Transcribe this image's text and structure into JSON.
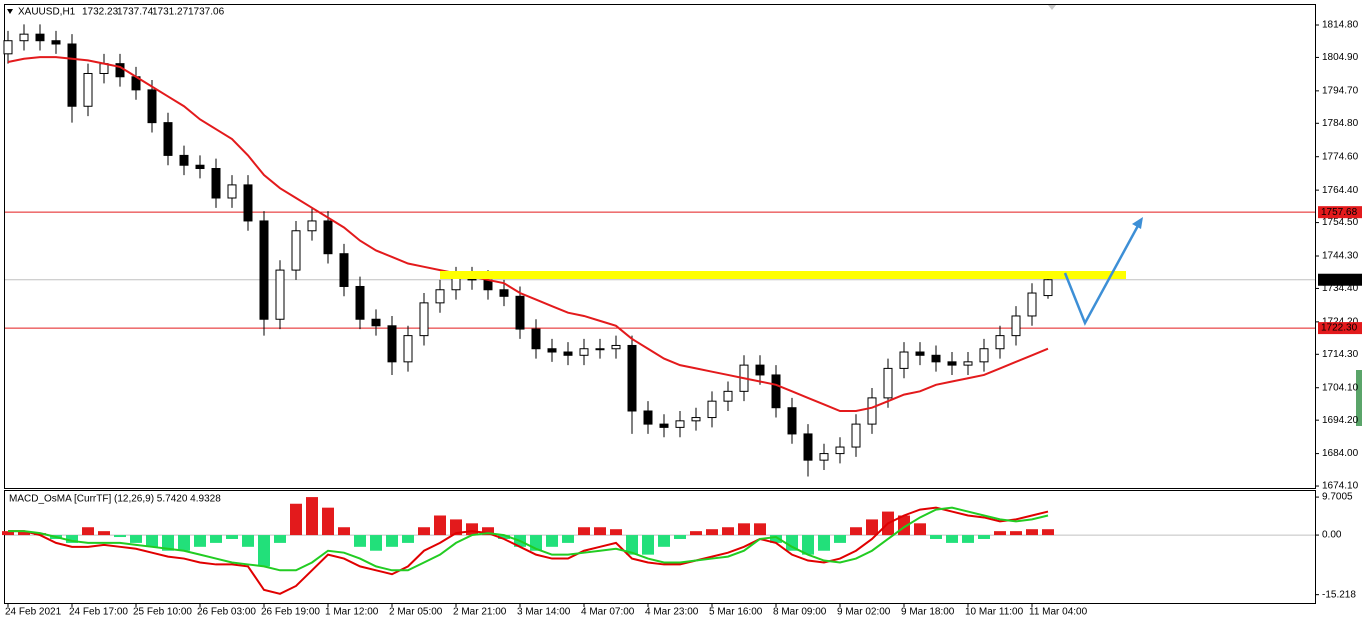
{
  "chart_data": {
    "type": "candlestick",
    "title": "XAUUSD,H1",
    "categories": [
      "24 Feb 2021",
      null,
      null,
      null,
      "24 Feb 17:00",
      null,
      null,
      null,
      "25 Feb 10:00",
      null,
      null,
      null,
      "26 Feb 03:00",
      null,
      null,
      null,
      "26 Feb 19:00",
      null,
      null,
      null,
      "1 Mar 12:00",
      null,
      null,
      null,
      "2 Mar 05:00",
      null,
      null,
      null,
      "2 Mar 21:00",
      null,
      null,
      null,
      "3 Mar 14:00",
      null,
      null,
      null,
      "4 Mar 07:00",
      null,
      null,
      null,
      "4 Mar 23:00",
      null,
      null,
      null,
      "5 Mar 16:00",
      null,
      null,
      null,
      "8 Mar 09:00",
      null,
      null,
      null,
      "9 Mar 02:00",
      null,
      null,
      null,
      "9 Mar 18:00",
      null,
      null,
      null,
      "10 Mar 11:00",
      null,
      null,
      null,
      "11 Mar 04:00",
      null
    ],
    "open": [
      1806,
      1810,
      1812,
      1810,
      1809,
      1790,
      1800,
      1803,
      1799,
      1795,
      1785,
      1775,
      1772,
      1771,
      1762,
      1766,
      1755,
      1725,
      1740,
      1752,
      1755,
      1745,
      1735,
      1725,
      1723,
      1712,
      1720,
      1730,
      1734,
      1738,
      1737,
      1734,
      1732,
      1722,
      1716,
      1715,
      1714,
      1716,
      1716,
      1717,
      1697,
      1693,
      1692,
      1694,
      1695,
      1700,
      1703,
      1711,
      1708,
      1698,
      1690,
      1682,
      1684,
      1686,
      1693,
      1701,
      1710,
      1715,
      1714,
      1712,
      1711,
      1712,
      1716,
      1720,
      1726,
      1732.23
    ],
    "high": [
      1813,
      1815,
      1815,
      1813,
      1812,
      1803,
      1806,
      1806,
      1802,
      1798,
      1788,
      1778,
      1775,
      1774,
      1769,
      1769,
      1758,
      1743,
      1755,
      1759,
      1758,
      1748,
      1738,
      1728,
      1726,
      1723,
      1733,
      1737,
      1741,
      1741,
      1740,
      1737,
      1735,
      1725,
      1719,
      1718,
      1719,
      1719,
      1720,
      1720,
      1700,
      1696,
      1697,
      1698,
      1703,
      1706,
      1714,
      1714,
      1711,
      1701,
      1693,
      1687,
      1689,
      1696,
      1704,
      1713,
      1718,
      1718,
      1717,
      1715,
      1715,
      1719,
      1723,
      1729,
      1736,
      1737.74
    ],
    "low": [
      1803,
      1807,
      1807,
      1806,
      1785,
      1787,
      1797,
      1796,
      1792,
      1782,
      1772,
      1769,
      1768,
      1759,
      1759,
      1752,
      1720,
      1722,
      1737,
      1749,
      1742,
      1732,
      1722,
      1720,
      1708,
      1709,
      1717,
      1727,
      1731,
      1734,
      1731,
      1729,
      1719,
      1713,
      1712,
      1711,
      1711,
      1713,
      1713,
      1690,
      1690,
      1689,
      1689,
      1691,
      1692,
      1697,
      1700,
      1705,
      1695,
      1687,
      1677,
      1679,
      1681,
      1683,
      1690,
      1698,
      1707,
      1711,
      1709,
      1708,
      1708,
      1709,
      1713,
      1717,
      1723,
      1731.27
    ],
    "close": [
      1810,
      1812,
      1810,
      1809,
      1790,
      1800,
      1803,
      1799,
      1795,
      1785,
      1775,
      1772,
      1771,
      1762,
      1766,
      1755,
      1725,
      1740,
      1752,
      1755,
      1745,
      1735,
      1725,
      1723,
      1712,
      1720,
      1730,
      1734,
      1738,
      1737,
      1734,
      1732,
      1722,
      1716,
      1715,
      1714,
      1716,
      1716,
      1717,
      1697,
      1693,
      1692,
      1694,
      1695,
      1700,
      1703,
      1711,
      1708,
      1698,
      1690,
      1682,
      1684,
      1686,
      1693,
      1701,
      1710,
      1715,
      1714,
      1712,
      1711,
      1712,
      1716,
      1720,
      1726,
      1733,
      1737.06
    ],
    "up_color": "#ffffff",
    "down_color": "#000000",
    "ma": {
      "color": "#e31a1c",
      "values": [
        1803.5,
        1804.5,
        1805,
        1805,
        1804.5,
        1804,
        1803,
        1802,
        1799,
        1796,
        1793,
        1790,
        1786,
        1783,
        1780,
        1775,
        1769,
        1765,
        1762,
        1759,
        1756,
        1753,
        1749,
        1746,
        1744,
        1742,
        1741,
        1740,
        1739,
        1738,
        1737,
        1736,
        1733,
        1731,
        1729,
        1727,
        1726,
        1724.5,
        1723,
        1719,
        1716,
        1713,
        1711,
        1710,
        1709,
        1708,
        1707,
        1706,
        1705,
        1703,
        1701,
        1699,
        1697,
        1697,
        1698,
        1700,
        1702,
        1703,
        1705,
        1706,
        1707,
        1708,
        1710,
        1712,
        1714,
        1716
      ]
    },
    "hlines": [
      {
        "value": 1757.68,
        "label": "1757.68",
        "color": "#e31a1c"
      },
      {
        "value": 1722.3,
        "label": "1722.30",
        "color": "#e31a1c"
      }
    ],
    "bid_color": "#c0c0c0",
    "ylim": [
      1673.5,
      1820.9
    ],
    "yticks": [
      {
        "value": 1814.8,
        "label": "1814.80"
      },
      {
        "value": 1804.9,
        "label": "1804.90"
      },
      {
        "value": 1794.7,
        "label": "1794.70"
      },
      {
        "value": 1784.8,
        "label": "1784.80"
      },
      {
        "value": 1774.6,
        "label": "1774.60"
      },
      {
        "value": 1764.4,
        "label": "1764.40"
      },
      {
        "value": 1754.5,
        "label": "1754.50"
      },
      {
        "value": 1744.3,
        "label": "1744.30"
      },
      {
        "value": 1734.4,
        "label": "1734.40"
      },
      {
        "value": 1724.2,
        "label": "1724.20"
      },
      {
        "value": 1714.3,
        "label": "1714.30"
      },
      {
        "value": 1704.1,
        "label": "1704.10"
      },
      {
        "value": 1694.2,
        "label": "1694.20"
      },
      {
        "value": 1684.0,
        "label": "1684.00"
      },
      {
        "value": 1674.1,
        "label": "1674.10"
      }
    ],
    "indicator": {
      "title": "MACD_OsMA [CurrTF] (12,26,9) 5.7420 4.9328",
      "ylim": [
        -17.35,
        11
      ],
      "yticks": [
        9.7005,
        {
          "value": 0,
          "label": "0.00"
        },
        -15.218
      ],
      "histogram": {
        "pos_color": "#e31a1c",
        "neg_color": "#22e07a",
        "values": [
          1,
          1,
          0.5,
          -1,
          -2,
          2,
          1,
          -0.5,
          -2,
          -3,
          -4,
          -4,
          -3,
          -2,
          -1,
          -3,
          -8,
          -2,
          8,
          9.7,
          7,
          2,
          -3,
          -4,
          -3,
          -2,
          2,
          5,
          4,
          3,
          2,
          -1,
          -3,
          -4,
          -3,
          -2,
          2,
          2,
          1.5,
          -5,
          -5,
          -3,
          -1,
          1,
          1.5,
          2,
          3,
          3,
          -2,
          -4,
          -5,
          -4,
          -2,
          2,
          4,
          6,
          5,
          3,
          -1,
          -2,
          -2,
          -1,
          1,
          1,
          1.5,
          1.5
        ]
      },
      "macd": {
        "color": "#e00000",
        "values": [
          1,
          1,
          0,
          -2,
          -3,
          -3,
          -2.5,
          -3,
          -3.5,
          -4.5,
          -5.5,
          -6,
          -7,
          -7.5,
          -7.5,
          -8,
          -14,
          -15,
          -13,
          -9,
          -5,
          -6,
          -8,
          -9,
          -10,
          -8,
          -4,
          -2,
          0.5,
          1,
          0.5,
          -1,
          -3,
          -5,
          -6,
          -6,
          -4,
          -3,
          -2,
          -6,
          -7,
          -7.5,
          -7.5,
          -6.5,
          -5.5,
          -4.5,
          -3,
          -1,
          -2,
          -5,
          -6.5,
          -7,
          -6,
          -4,
          -1,
          3,
          5,
          6.5,
          7,
          6,
          5,
          4.5,
          3.5,
          4,
          5,
          6
        ]
      },
      "signal": {
        "color": "#22cc22",
        "values": [
          1,
          1,
          0.5,
          -0.5,
          -1.5,
          -2,
          -2,
          -2,
          -2.5,
          -3,
          -3.5,
          -4,
          -5,
          -6,
          -7,
          -7.5,
          -8,
          -9,
          -9,
          -7,
          -4,
          -4.5,
          -6,
          -8,
          -9,
          -9,
          -7,
          -5,
          -2,
          0,
          0.5,
          0,
          -1.5,
          -3.5,
          -5,
          -5,
          -4.5,
          -4,
          -3.5,
          -4.5,
          -6,
          -7,
          -7,
          -6.5,
          -6,
          -5.5,
          -4,
          -1,
          -0.5,
          -3,
          -5,
          -6.5,
          -7,
          -6,
          -4,
          -1,
          2,
          4.5,
          6.5,
          7,
          6,
          5,
          4,
          3.5,
          4,
          5
        ]
      }
    }
  }
}
